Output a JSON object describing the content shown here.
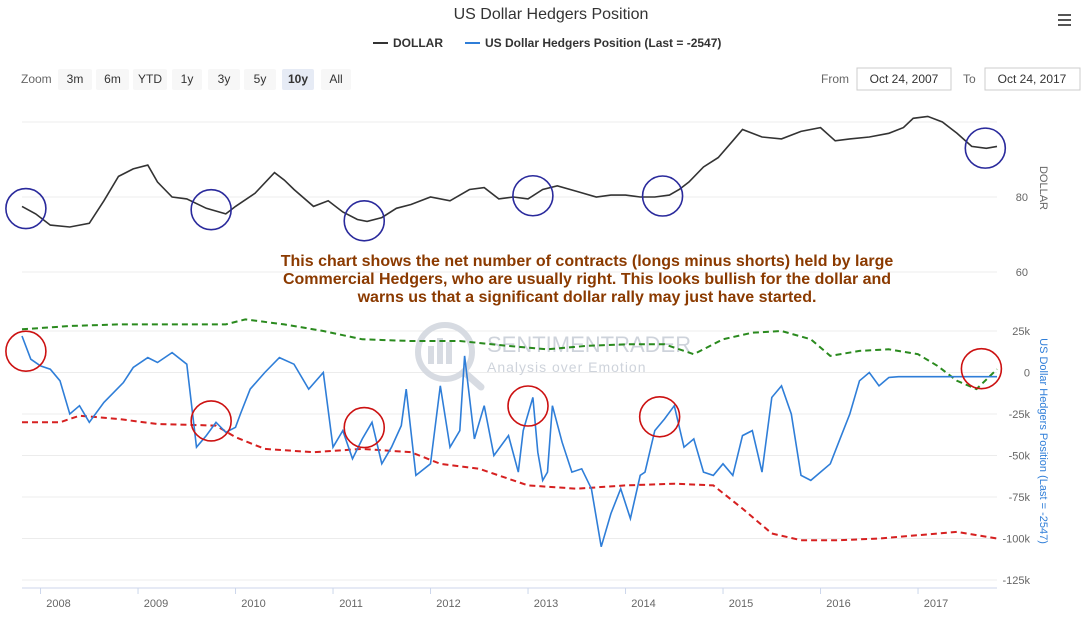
{
  "header": {
    "title": "US Dollar Hedgers Position",
    "menu_icon": "hamburger-menu-icon"
  },
  "legend": [
    {
      "label": "DOLLAR",
      "color": "#333333"
    },
    {
      "label": "US Dollar Hedgers Position (Last = -2547)",
      "color": "#2f7ed8"
    }
  ],
  "range_selector": {
    "zoom_label": "Zoom",
    "buttons": [
      "3m",
      "6m",
      "YTD",
      "1y",
      "3y",
      "5y",
      "10y",
      "All"
    ],
    "selected": "10y",
    "from_label": "From",
    "from_value": "Oct 24, 2007",
    "to_label": "To",
    "to_value": "Oct 24, 2017"
  },
  "annotation": {
    "lines": [
      "This chart shows the net number of contracts (longs minus shorts) held by large",
      "Commercial Hedgers, who are usually right. This looks bullish for the dollar and",
      "warns us that a significant dollar rally may just have started."
    ]
  },
  "watermark": {
    "brand": "SENTIMENTRADER",
    "tagline": "Analysis over Emotion"
  },
  "chart_data": {
    "type": "line",
    "x_axis": {
      "labels": [
        "2008",
        "2009",
        "2010",
        "2011",
        "2012",
        "2013",
        "2014",
        "2015",
        "2016",
        "2017"
      ],
      "range": [
        2007.81,
        2017.81
      ]
    },
    "upper_panel": {
      "ylabel": "DOLLAR",
      "y_ticks": [
        "80",
        "60"
      ],
      "ylim": [
        60,
        100
      ],
      "series": [
        {
          "name": "DOLLAR",
          "color": "#333333",
          "x": [
            2007.81,
            2007.95,
            2008.1,
            2008.3,
            2008.5,
            2008.65,
            2008.8,
            2008.95,
            2009.1,
            2009.2,
            2009.35,
            2009.5,
            2009.7,
            2009.9,
            2010.0,
            2010.2,
            2010.4,
            2010.5,
            2010.6,
            2010.8,
            2010.95,
            2011.1,
            2011.25,
            2011.35,
            2011.5,
            2011.65,
            2011.8,
            2012.0,
            2012.2,
            2012.4,
            2012.55,
            2012.7,
            2012.85,
            2013.0,
            2013.15,
            2013.3,
            2013.5,
            2013.7,
            2013.85,
            2014.0,
            2014.15,
            2014.3,
            2014.45,
            2014.55,
            2014.65,
            2014.8,
            2014.95,
            2015.1,
            2015.2,
            2015.4,
            2015.6,
            2015.8,
            2016.0,
            2016.15,
            2016.3,
            2016.5,
            2016.7,
            2016.85,
            2016.95,
            2017.1,
            2017.25,
            2017.4,
            2017.55,
            2017.7,
            2017.81
          ],
          "y": [
            77.5,
            75.5,
            72.5,
            72.0,
            73.0,
            79.0,
            85.5,
            87.5,
            88.5,
            84.0,
            80.0,
            79.5,
            77.0,
            75.5,
            77.5,
            81.0,
            86.5,
            84.5,
            82.0,
            77.5,
            79.0,
            76.0,
            74.0,
            73.5,
            74.5,
            77.0,
            78.0,
            80.0,
            79.0,
            82.0,
            82.5,
            79.5,
            80.0,
            79.5,
            82.0,
            83.0,
            81.5,
            80.0,
            80.5,
            80.5,
            80.0,
            80.0,
            80.5,
            82.0,
            84.0,
            88.0,
            90.5,
            95.0,
            98.0,
            96.0,
            95.5,
            97.5,
            98.5,
            95.0,
            95.5,
            96.0,
            97.0,
            98.5,
            101.0,
            101.5,
            100.0,
            97.0,
            93.5,
            93.0,
            93.5
          ]
        }
      ]
    },
    "lower_panel": {
      "ylabel": "US Dollar Hedgers Position (Last = -2547)",
      "y_ticks": [
        "25k",
        "0",
        "-25k",
        "-50k",
        "-75k",
        "-100k",
        "-125k"
      ],
      "ylim": [
        -125000,
        25000
      ],
      "series": [
        {
          "name": "US Dollar Hedgers Position (Last = -2547)",
          "color": "#2f7ed8",
          "x": [
            2007.81,
            2007.9,
            2008.0,
            2008.1,
            2008.2,
            2008.3,
            2008.4,
            2008.5,
            2008.65,
            2008.75,
            2008.85,
            2008.95,
            2009.1,
            2009.2,
            2009.35,
            2009.5,
            2009.6,
            2009.7,
            2009.8,
            2009.9,
            2010.0,
            2010.05,
            2010.15,
            2010.3,
            2010.45,
            2010.6,
            2010.75,
            2010.9,
            2011.0,
            2011.1,
            2011.2,
            2011.3,
            2011.4,
            2011.5,
            2011.6,
            2011.7,
            2011.75,
            2011.85,
            2012.0,
            2012.1,
            2012.2,
            2012.3,
            2012.35,
            2012.45,
            2012.55,
            2012.65,
            2012.8,
            2012.9,
            2012.95,
            2013.05,
            2013.1,
            2013.15,
            2013.2,
            2013.25,
            2013.35,
            2013.45,
            2013.55,
            2013.65,
            2013.75,
            2013.85,
            2013.95,
            2014.05,
            2014.15,
            2014.2,
            2014.3,
            2014.4,
            2014.5,
            2014.6,
            2014.7,
            2014.8,
            2014.9,
            2015.0,
            2015.1,
            2015.2,
            2015.3,
            2015.4,
            2015.5,
            2015.6,
            2015.7,
            2015.8,
            2015.9,
            2016.0,
            2016.1,
            2016.2,
            2016.3,
            2016.4,
            2016.5,
            2016.6,
            2016.7,
            2016.8,
            2016.9,
            2016.95,
            2017.1,
            2017.2,
            2017.3,
            2017.4,
            2017.45,
            2017.5,
            2017.6,
            2017.7,
            2017.81
          ],
          "y": [
            22000,
            8000,
            4000,
            2000,
            -5000,
            -25000,
            -20000,
            -30000,
            -18000,
            -12000,
            -6000,
            3000,
            9000,
            6000,
            12000,
            5000,
            -45000,
            -38000,
            -30000,
            -36000,
            -33000,
            -25000,
            -10000,
            0,
            9000,
            5000,
            -10000,
            0,
            -45000,
            -35000,
            -52000,
            -40000,
            -30000,
            -55000,
            -45000,
            -32000,
            -10000,
            -62000,
            -55000,
            -8000,
            -45000,
            -35000,
            10000,
            -40000,
            -20000,
            -50000,
            -38000,
            -60000,
            -35000,
            -15000,
            -48000,
            -65000,
            -60000,
            -20000,
            -42000,
            -60000,
            -58000,
            -70000,
            -105000,
            -85000,
            -70000,
            -88000,
            -62000,
            -60000,
            -35000,
            -28000,
            -20000,
            -45000,
            -40000,
            -60000,
            -62000,
            -55000,
            -62000,
            -38000,
            -35000,
            -60000,
            -15000,
            -8000,
            -25000,
            -62000,
            -65000,
            -60000,
            -55000,
            -40000,
            -25000,
            -5000,
            0,
            -8000,
            -3000,
            -2547,
            -2547,
            -2547,
            -2547,
            -2547,
            -2547,
            -2547,
            -2547,
            -2547,
            -2547,
            -2547,
            -2547
          ],
          "note": "series traced from chart"
        },
        {
          "name": "Upper band",
          "color": "#2a8a1e",
          "style": "dashed",
          "x": [
            2007.81,
            2008.3,
            2008.8,
            2009.3,
            2009.9,
            2010.1,
            2010.5,
            2010.9,
            2011.3,
            2011.8,
            2012.3,
            2012.8,
            2013.2,
            2013.6,
            2014.0,
            2014.4,
            2014.7,
            2015.0,
            2015.3,
            2015.6,
            2015.9,
            2016.1,
            2016.4,
            2016.7,
            2017.0,
            2017.2,
            2017.4,
            2017.6,
            2017.81
          ],
          "y": [
            26000,
            28000,
            29000,
            29000,
            29000,
            32000,
            29000,
            25000,
            20000,
            19000,
            19000,
            16000,
            14000,
            16000,
            17000,
            17000,
            11000,
            20000,
            24000,
            25000,
            20000,
            10000,
            13000,
            14000,
            11000,
            4000,
            -5000,
            -10000,
            2000
          ]
        },
        {
          "name": "Lower band",
          "color": "#d62020",
          "style": "dashed",
          "x": [
            2007.81,
            2008.2,
            2008.4,
            2008.8,
            2009.2,
            2009.8,
            2010.0,
            2010.3,
            2010.8,
            2011.3,
            2011.8,
            2012.1,
            2012.5,
            2013.0,
            2013.5,
            2014.0,
            2014.5,
            2014.9,
            2015.2,
            2015.5,
            2015.8,
            2016.2,
            2016.6,
            2017.0,
            2017.4,
            2017.81
          ],
          "y": [
            -30000,
            -30000,
            -26000,
            -28000,
            -31000,
            -32000,
            -39000,
            -46000,
            -48000,
            -46000,
            -48000,
            -55000,
            -58000,
            -68000,
            -70000,
            -68000,
            -67000,
            -68000,
            -82000,
            -97000,
            -101000,
            -101000,
            -100000,
            -98000,
            -96000,
            -100000
          ]
        }
      ]
    },
    "circles": {
      "upper_blue": [
        2007.85,
        2009.75,
        2011.32,
        2013.05,
        2014.38,
        2017.69
      ],
      "lower_red": [
        2007.85,
        2009.75,
        2011.32,
        2013.0,
        2014.35,
        2017.65
      ]
    }
  }
}
